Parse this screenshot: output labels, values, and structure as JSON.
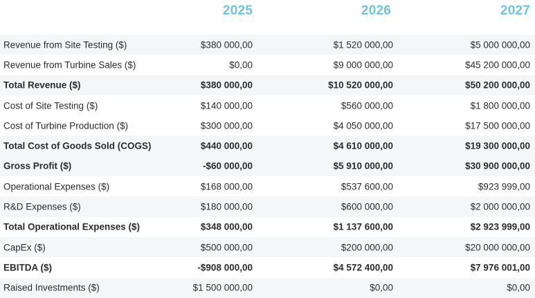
{
  "header": {
    "years": [
      "2025",
      "2026",
      "2027"
    ]
  },
  "rows": [
    {
      "label": "Revenue from Site Testing ($)",
      "values": [
        "$380 000,00",
        "$1 520 000,00",
        "$5 000 000,00"
      ],
      "bold": false
    },
    {
      "label": "Revenue from Turbine Sales ($)",
      "values": [
        "$0,00",
        "$9 000 000,00",
        "$45 200 000,00"
      ],
      "bold": false
    },
    {
      "label": "Total Revenue ($)",
      "values": [
        "$380 000,00",
        "$10 520 000,00",
        "$50 200 000,00"
      ],
      "bold": true
    },
    {
      "label": "Cost of Site Testing ($)",
      "values": [
        "$140 000,00",
        "$560 000,00",
        "$1 800 000,00"
      ],
      "bold": false
    },
    {
      "label": "Cost of Turbine Production ($)",
      "values": [
        "$300 000,00",
        "$4 050 000,00",
        "$17 500 000,00"
      ],
      "bold": false
    },
    {
      "label": "Total Cost of Goods Sold (COGS)",
      "values": [
        "$440 000,00",
        "$4 610 000,00",
        "$19 300 000,00"
      ],
      "bold": true
    },
    {
      "label": "Gross Profit ($)",
      "values": [
        "-$60 000,00",
        "$5 910 000,00",
        "$30 900 000,00"
      ],
      "bold": true
    },
    {
      "label": "Operational Expenses ($)",
      "values": [
        "$168 000,00",
        "$537 600,00",
        "$923 999,00"
      ],
      "bold": false
    },
    {
      "label": "R&D Expenses ($)",
      "values": [
        "$180 000,00",
        "$600 000,00",
        "$2 000 000,00"
      ],
      "bold": false
    },
    {
      "label": "Total Operational Expenses ($)",
      "values": [
        "$348 000,00",
        "$1 137 600,00",
        "$2 923 999,00"
      ],
      "bold": true
    },
    {
      "label": "CapEx ($)",
      "values": [
        "$500 000,00",
        "$200 000,00",
        "$20 000 000,00"
      ],
      "bold": false
    },
    {
      "label": "EBITDA ($)",
      "values": [
        "-$908 000,00",
        "$4 572 400,00",
        "$7 976 001,00"
      ],
      "bold": true
    },
    {
      "label": "Raised Investments ($)",
      "values": [
        "$1 500 000,00",
        "$0,00",
        "$0,00"
      ],
      "bold": false
    }
  ],
  "colors": {
    "year_header": "#6fc3e6",
    "row_shade": "#f5f6f8",
    "text": "#2b2b2b"
  }
}
